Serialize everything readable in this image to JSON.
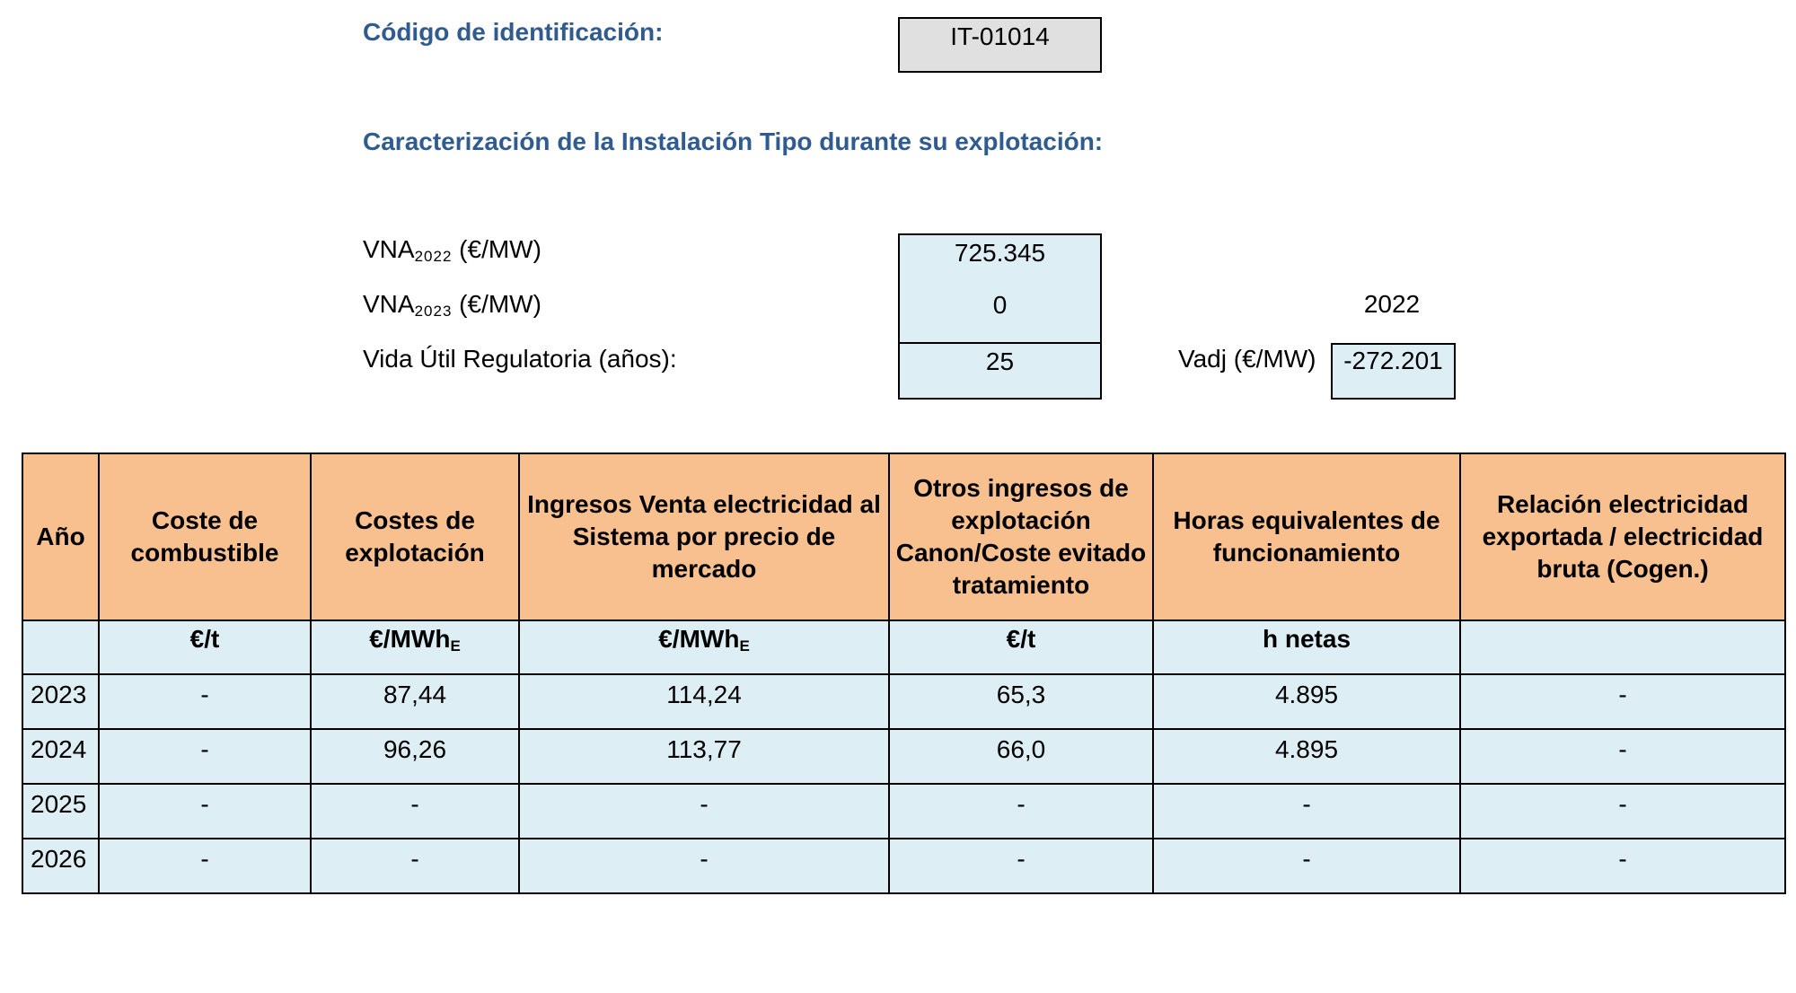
{
  "header": {
    "id_label": "Código de identificación:",
    "id_value": "IT-01014",
    "section_title": "Caracterización de la Instalación Tipo durante su explotación:"
  },
  "params": {
    "vna2022": {
      "prefix": "VNA",
      "sub": "2022",
      "suffix": " (€/MW)",
      "value": "725.345"
    },
    "vna2023": {
      "prefix": "VNA",
      "sub": "2023",
      "suffix": " (€/MW)",
      "value": "0"
    },
    "vida": {
      "label": "Vida Útil Regulatoria (años):",
      "value": "25"
    },
    "year_note": "2022",
    "vadj": {
      "label": "Vadj (€/MW)",
      "value": "-272.201"
    }
  },
  "table": {
    "headers": [
      "Año",
      "Coste de combustible",
      "Costes de explotación",
      "Ingresos Venta electricidad al Sistema por precio de mercado",
      "Otros ingresos de explotación Canon/Coste evitado tratamiento",
      "Horas equivalentes de funcionamiento",
      "Relación electricidad exportada / electricidad bruta (Cogen.)"
    ],
    "units": [
      {
        "main": "",
        "sub": ""
      },
      {
        "main": "€/t",
        "sub": ""
      },
      {
        "main": "€/MWh",
        "sub": "E"
      },
      {
        "main": "€/MWh",
        "sub": "E"
      },
      {
        "main": "€/t",
        "sub": ""
      },
      {
        "main": "h netas",
        "sub": ""
      },
      {
        "main": "",
        "sub": ""
      }
    ],
    "rows": [
      [
        "2023",
        "-",
        "87,44",
        "114,24",
        "65,3",
        "4.895",
        "-"
      ],
      [
        "2024",
        "-",
        "96,26",
        "113,77",
        "66,0",
        "4.895",
        "-"
      ],
      [
        "2025",
        "-",
        "-",
        "-",
        "-",
        "-",
        "-"
      ],
      [
        "2026",
        "-",
        "-",
        "-",
        "-",
        "-",
        "-"
      ]
    ]
  },
  "colors": {
    "heading": "#2f5b8f",
    "header_fill": "#f8c08e",
    "cell_fill": "#ddeef5",
    "id_fill": "#e0e0e0"
  }
}
